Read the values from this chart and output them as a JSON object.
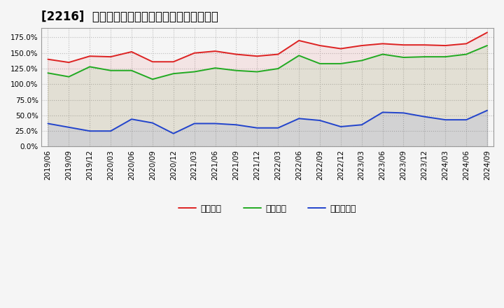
{
  "title": "[2216]  流動比率、当座比率、現預金比率の推移",
  "background_color": "#f5f5f5",
  "plot_bg_color": "#f5f5f5",
  "grid_color": "#bbbbbb",
  "x_labels": [
    "2019/06",
    "2019/09",
    "2019/12",
    "2020/03",
    "2020/06",
    "2020/09",
    "2020/12",
    "2021/03",
    "2021/06",
    "2021/09",
    "2021/12",
    "2022/03",
    "2022/06",
    "2022/09",
    "2022/12",
    "2023/03",
    "2023/06",
    "2023/09",
    "2023/12",
    "2024/03",
    "2024/06",
    "2024/09"
  ],
  "ryudo": [
    140,
    135,
    145,
    144,
    152,
    136,
    136,
    150,
    153,
    148,
    145,
    148,
    170,
    162,
    157,
    162,
    165,
    163,
    163,
    162,
    165,
    183
  ],
  "toza": [
    118,
    112,
    128,
    122,
    122,
    108,
    117,
    120,
    126,
    122,
    120,
    125,
    146,
    133,
    133,
    138,
    148,
    143,
    144,
    144,
    148,
    162
  ],
  "genyo": [
    37,
    31,
    25,
    25,
    44,
    38,
    21,
    37,
    37,
    35,
    30,
    30,
    45,
    42,
    32,
    35,
    55,
    54,
    48,
    43,
    43,
    58
  ],
  "legend_labels": [
    "流動比率",
    "当座比率",
    "現預金比率"
  ],
  "line_colors": [
    "#dd2222",
    "#22aa22",
    "#2244cc"
  ],
  "ylim": [
    0,
    190
  ],
  "yticks": [
    0,
    25,
    50,
    75,
    100,
    125,
    150,
    175
  ],
  "title_fontsize": 12,
  "tick_fontsize": 7.5,
  "legend_fontsize": 9,
  "linewidth": 1.4
}
